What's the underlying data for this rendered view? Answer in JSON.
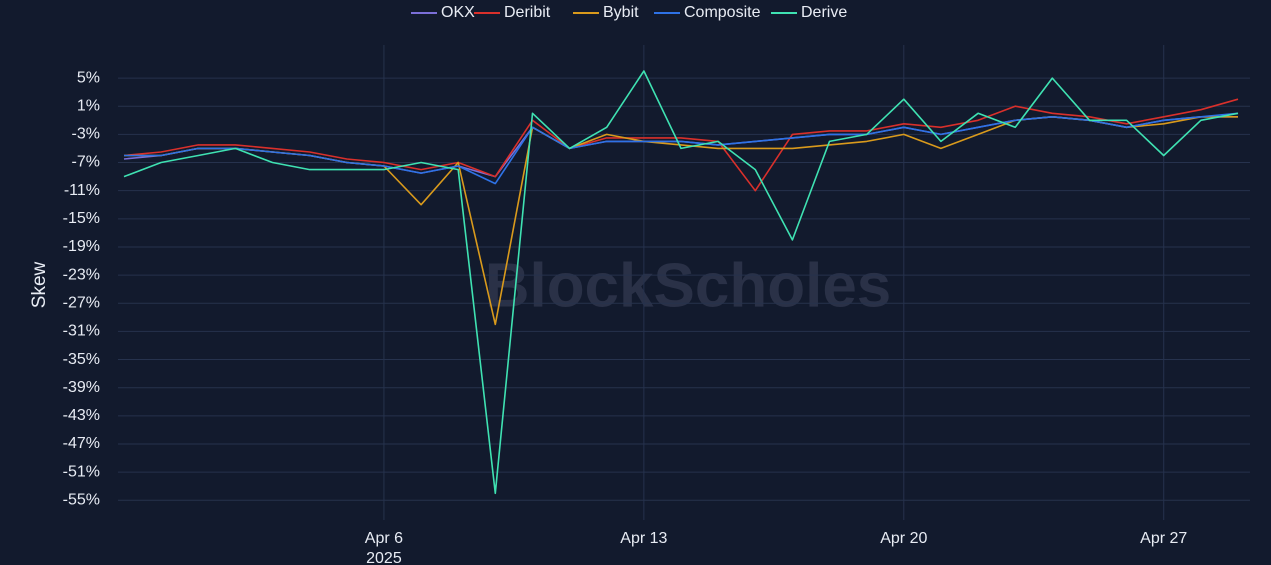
{
  "chart_data": {
    "type": "line",
    "y_label": "Skew",
    "watermark": "BlockScholes",
    "x": [
      "2025-03-30",
      "2025-03-31",
      "2025-04-01",
      "2025-04-02",
      "2025-04-03",
      "2025-04-04",
      "2025-04-05",
      "2025-04-06",
      "2025-04-07",
      "2025-04-08",
      "2025-04-09",
      "2025-04-10",
      "2025-04-11",
      "2025-04-12",
      "2025-04-13",
      "2025-04-14",
      "2025-04-15",
      "2025-04-16",
      "2025-04-17",
      "2025-04-18",
      "2025-04-19",
      "2025-04-20",
      "2025-04-21",
      "2025-04-22",
      "2025-04-23",
      "2025-04-24",
      "2025-04-25",
      "2025-04-26",
      "2025-04-27",
      "2025-04-28",
      "2025-04-29"
    ],
    "xlim": [
      "2025-03-30",
      "2025-04-29"
    ],
    "xticks": [
      {
        "value": "2025-04-06",
        "label": "Apr 6",
        "sublabel": "2025"
      },
      {
        "value": "2025-04-13",
        "label": "Apr 13"
      },
      {
        "value": "2025-04-20",
        "label": "Apr 20"
      },
      {
        "value": "2025-04-27",
        "label": "Apr 27"
      }
    ],
    "ylim": [
      -57.8,
      9.7
    ],
    "yticks": [
      {
        "value": 5,
        "label": "5%"
      },
      {
        "value": 1,
        "label": "1%"
      },
      {
        "value": -3,
        "label": "-3%"
      },
      {
        "value": -7,
        "label": "-7%"
      },
      {
        "value": -11,
        "label": "-11%"
      },
      {
        "value": -15,
        "label": "-15%"
      },
      {
        "value": -19,
        "label": "-19%"
      },
      {
        "value": -23,
        "label": "-23%"
      },
      {
        "value": -27,
        "label": "-27%"
      },
      {
        "value": -31,
        "label": "-31%"
      },
      {
        "value": -35,
        "label": "-35%"
      },
      {
        "value": -39,
        "label": "-39%"
      },
      {
        "value": -43,
        "label": "-43%"
      },
      {
        "value": -47,
        "label": "-47%"
      },
      {
        "value": -51,
        "label": "-51%"
      },
      {
        "value": -55,
        "label": "-55%"
      }
    ],
    "grid": true,
    "legend": "top",
    "series": [
      {
        "name": "OKX",
        "color": "#7b6fd8",
        "values": [
          -6.5,
          -6,
          -5,
          -5,
          -5.5,
          -6,
          -7,
          -7.5,
          -8.5,
          -7.5,
          -9,
          -2,
          -5,
          -4,
          -4,
          -4,
          -4.5,
          -4,
          -3.5,
          -3,
          -3,
          -2,
          -3,
          -2,
          -1,
          -0.5,
          -1,
          -2,
          -1,
          -0.5,
          -0.5
        ]
      },
      {
        "name": "Deribit",
        "color": "#d9302b",
        "values": [
          -6,
          -5.5,
          -4.5,
          -4.5,
          -5,
          -5.5,
          -6.5,
          -7,
          -8,
          -7,
          -9,
          -1,
          -5,
          -3.5,
          -3.5,
          -3.5,
          -4,
          -11,
          -3,
          -2.5,
          -2.5,
          -1.5,
          -2,
          -1,
          1,
          0,
          -0.5,
          -1.5,
          -0.5,
          0.5,
          2
        ]
      },
      {
        "name": "Bybit",
        "color": "#d99a1c",
        "values": [
          -6,
          -6,
          -5,
          -5,
          -5.5,
          -6,
          -7,
          -7.5,
          -13,
          -7,
          -30,
          -2,
          -5,
          -3,
          -4,
          -4.5,
          -5,
          -5,
          -5,
          -4.5,
          -4,
          -3,
          -5,
          -3,
          -1,
          -0.5,
          -1,
          -2,
          -1.5,
          -0.5,
          -0.5
        ]
      },
      {
        "name": "Composite",
        "color": "#2e72e6",
        "values": [
          -6,
          -6,
          -5,
          -5,
          -5.5,
          -6,
          -7,
          -7.5,
          -8.5,
          -7.5,
          -10,
          -2,
          -5,
          -4,
          -4,
          -4,
          -4.5,
          -4,
          -3.5,
          -3,
          -3,
          -2,
          -3,
          -2,
          -1,
          -0.5,
          -1,
          -2,
          -1,
          -0.5,
          0
        ]
      },
      {
        "name": "Derive",
        "color": "#3fe2b2",
        "values": [
          -9,
          -7,
          -6,
          -5,
          -7,
          -8,
          -8,
          -8,
          -7,
          -8,
          -54,
          0,
          -5,
          -2,
          6,
          -5,
          -4,
          -8,
          -18,
          -4,
          -3,
          2,
          -4,
          0,
          -2,
          5,
          -1,
          -1,
          -6,
          -1,
          0
        ]
      }
    ]
  }
}
